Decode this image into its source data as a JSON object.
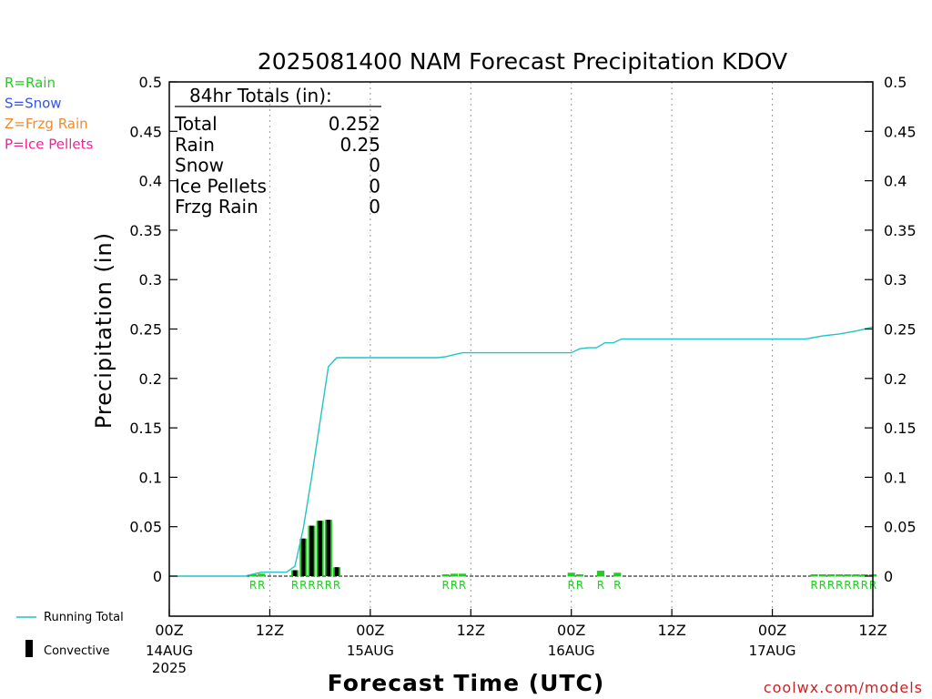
{
  "chart_data": {
    "type": "bar",
    "title": "2025081400 NAM Forecast Precipitation KDOV",
    "xlabel": "Forecast Time (UTC)",
    "ylabel": "Precipitation (in)",
    "ylim": [
      -0.04,
      0.5
    ],
    "xlim_hours": [
      0,
      84
    ],
    "y_ticks": [
      "0",
      "0.05",
      "0.1",
      "0.15",
      "0.2",
      "0.25",
      "0.3",
      "0.35",
      "0.4",
      "0.45",
      "0.5"
    ],
    "y_tick_values": [
      0,
      0.05,
      0.1,
      0.15,
      0.2,
      0.25,
      0.3,
      0.35,
      0.4,
      0.45,
      0.5
    ],
    "x_ticks": [
      {
        "hour": 0,
        "label": "00Z",
        "sub": [
          "14AUG",
          "2025"
        ]
      },
      {
        "hour": 12,
        "label": "12Z",
        "sub": []
      },
      {
        "hour": 24,
        "label": "00Z",
        "sub": [
          "15AUG"
        ]
      },
      {
        "hour": 36,
        "label": "12Z",
        "sub": []
      },
      {
        "hour": 48,
        "label": "00Z",
        "sub": [
          "16AUG"
        ]
      },
      {
        "hour": 60,
        "label": "12Z",
        "sub": []
      },
      {
        "hour": 72,
        "label": "00Z",
        "sub": [
          "17AUG"
        ]
      },
      {
        "hour": 84,
        "label": "12Z",
        "sub": []
      }
    ],
    "grid": "dotted vertical at 12-hour intervals",
    "precip_bars": [
      {
        "hour": 10,
        "value": 0.001,
        "type": "R",
        "convective": false
      },
      {
        "hour": 11,
        "value": 0.002,
        "type": "R",
        "convective": false
      },
      {
        "hour": 15,
        "value": 0.006,
        "type": "R",
        "convective": true
      },
      {
        "hour": 16,
        "value": 0.038,
        "type": "R",
        "convective": true
      },
      {
        "hour": 17,
        "value": 0.051,
        "type": "R",
        "convective": true
      },
      {
        "hour": 18,
        "value": 0.056,
        "type": "R",
        "convective": true
      },
      {
        "hour": 19,
        "value": 0.057,
        "type": "R",
        "convective": true
      },
      {
        "hour": 20,
        "value": 0.009,
        "type": "R",
        "convective": true
      },
      {
        "hour": 33,
        "value": 0.001,
        "type": "R",
        "convective": false
      },
      {
        "hour": 34,
        "value": 0.002,
        "type": "R",
        "convective": false
      },
      {
        "hour": 35,
        "value": 0.002,
        "type": "R",
        "convective": false
      },
      {
        "hour": 48,
        "value": 0.003,
        "type": "R",
        "convective": false
      },
      {
        "hour": 49,
        "value": 0.001,
        "type": "R",
        "convective": false
      },
      {
        "hour": 51.5,
        "value": 0.005,
        "type": "R",
        "convective": false
      },
      {
        "hour": 53.5,
        "value": 0.003,
        "type": "R",
        "convective": false
      },
      {
        "hour": 77,
        "value": 0.001,
        "type": "R",
        "convective": false
      },
      {
        "hour": 78,
        "value": 0.001,
        "type": "R",
        "convective": false
      },
      {
        "hour": 79,
        "value": 0.001,
        "type": "R",
        "convective": false
      },
      {
        "hour": 80,
        "value": 0.001,
        "type": "R",
        "convective": false
      },
      {
        "hour": 81,
        "value": 0.001,
        "type": "R",
        "convective": false
      },
      {
        "hour": 82,
        "value": 0.001,
        "type": "R",
        "convective": false
      },
      {
        "hour": 83,
        "value": 0.001,
        "type": "R",
        "convective": false
      },
      {
        "hour": 84,
        "value": 0.001,
        "type": "R",
        "convective": false
      }
    ],
    "running_total": [
      {
        "hour": 0,
        "value": 0
      },
      {
        "hour": 9,
        "value": 0
      },
      {
        "hour": 10,
        "value": 0.002
      },
      {
        "hour": 11,
        "value": 0.004
      },
      {
        "hour": 14,
        "value": 0.004
      },
      {
        "hour": 15,
        "value": 0.01
      },
      {
        "hour": 16,
        "value": 0.048
      },
      {
        "hour": 17,
        "value": 0.1
      },
      {
        "hour": 18,
        "value": 0.156
      },
      {
        "hour": 19,
        "value": 0.212
      },
      {
        "hour": 20,
        "value": 0.221
      },
      {
        "hour": 32,
        "value": 0.221
      },
      {
        "hour": 33,
        "value": 0.222
      },
      {
        "hour": 34,
        "value": 0.224
      },
      {
        "hour": 35,
        "value": 0.226
      },
      {
        "hour": 48,
        "value": 0.226
      },
      {
        "hour": 49,
        "value": 0.23
      },
      {
        "hour": 50,
        "value": 0.231
      },
      {
        "hour": 51,
        "value": 0.231
      },
      {
        "hour": 52,
        "value": 0.236
      },
      {
        "hour": 53,
        "value": 0.236
      },
      {
        "hour": 54,
        "value": 0.24
      },
      {
        "hour": 76,
        "value": 0.24
      },
      {
        "hour": 78,
        "value": 0.243
      },
      {
        "hour": 80,
        "value": 0.245
      },
      {
        "hour": 82,
        "value": 0.248
      },
      {
        "hour": 84,
        "value": 0.252
      }
    ],
    "totals_box": {
      "heading": "84hr Totals (in):",
      "rows": [
        {
          "label": "Total",
          "value": "0.252"
        },
        {
          "label": "Rain",
          "value": "0.25"
        },
        {
          "label": "Snow",
          "value": "0"
        },
        {
          "label": "Ice Pellets",
          "value": "0"
        },
        {
          "label": "Frzg Rain",
          "value": "0"
        }
      ]
    },
    "type_legend": [
      {
        "text": "R=Rain",
        "color": "#22cc22"
      },
      {
        "text": "S=Snow",
        "color": "#3355ee"
      },
      {
        "text": "Z=Frzg Rain",
        "color": "#f08a30"
      },
      {
        "text": "P=Ice Pellets",
        "color": "#ee2299"
      }
    ],
    "series_legend": [
      {
        "text": "Running Total",
        "color": "#22c4c4",
        "symbol": "line"
      },
      {
        "text": "Convective",
        "color": "#000000",
        "symbol": "bar"
      }
    ],
    "colors": {
      "rain_bar": "#22cc22",
      "running_total": "#22c4c4",
      "convective": "#000000"
    }
  },
  "footer": {
    "credit": "coolwx.com/models"
  }
}
